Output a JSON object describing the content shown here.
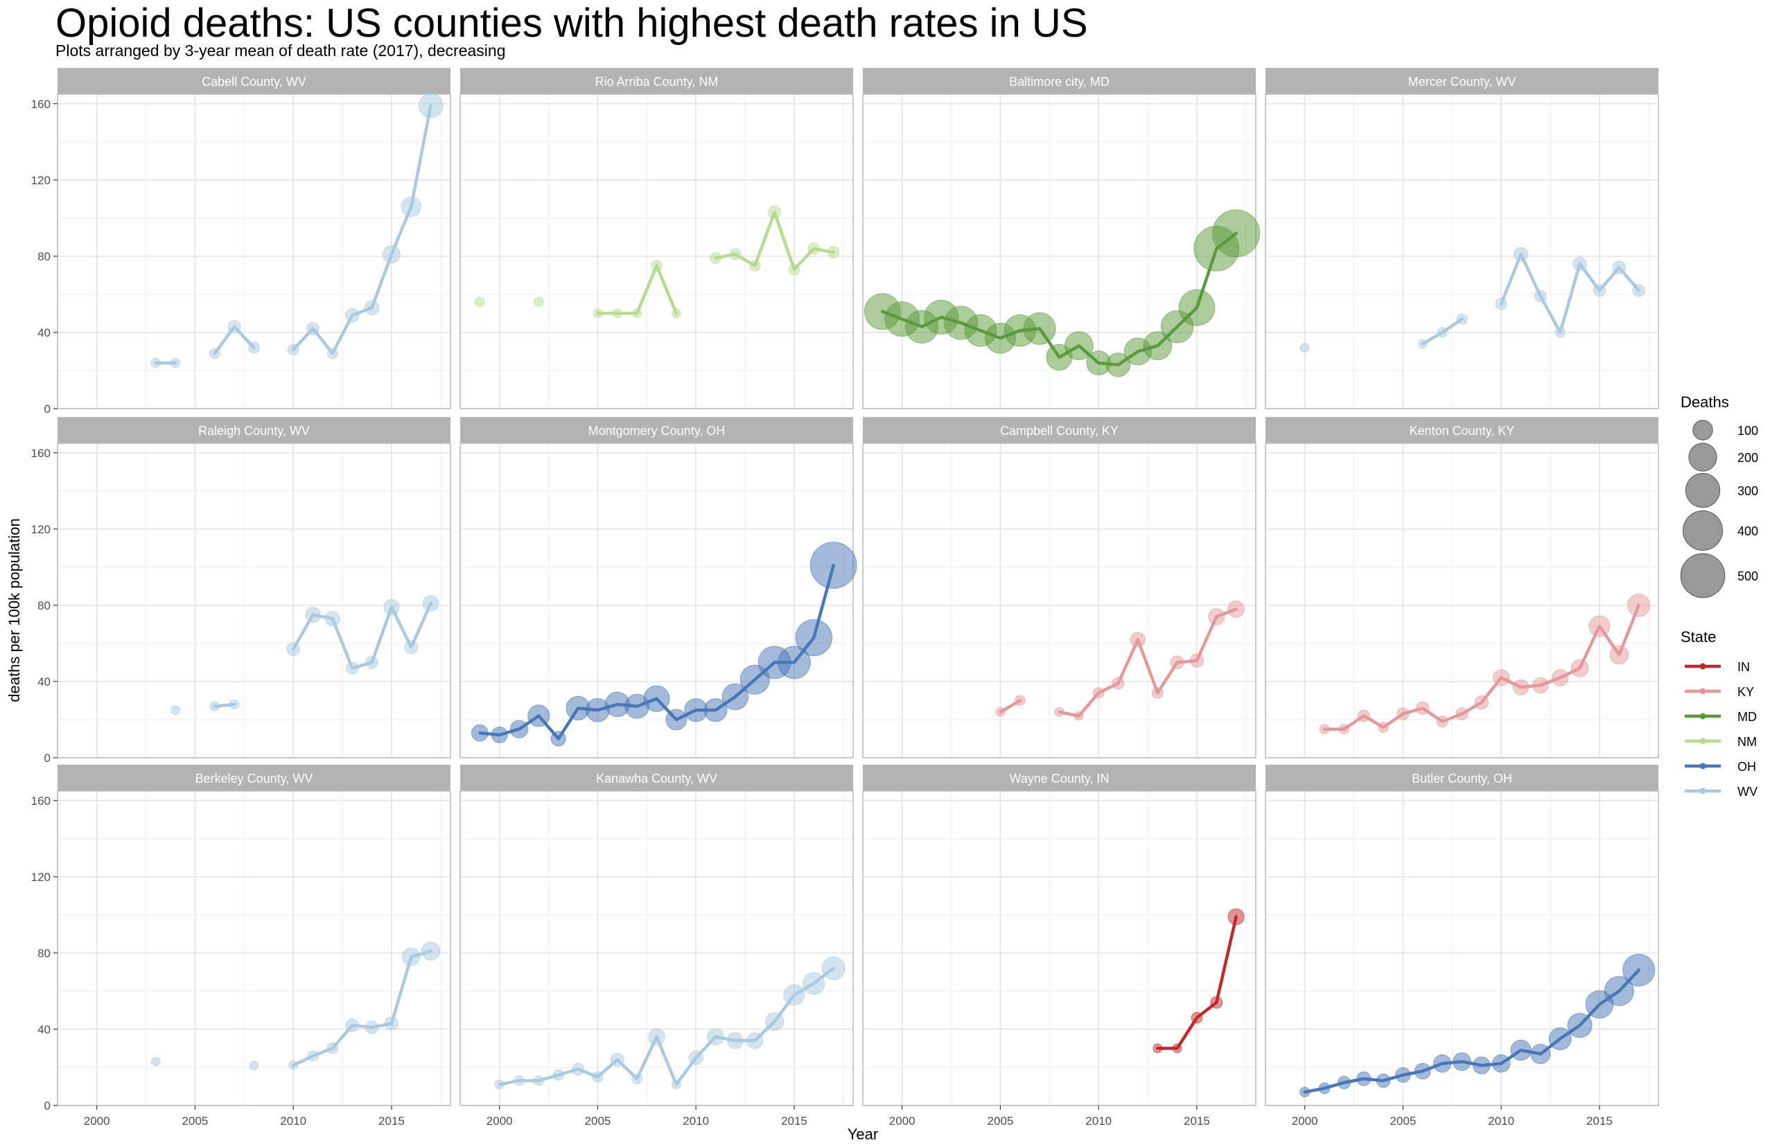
{
  "title": "Opioid deaths: US counties with highest death rates in US",
  "subtitle": "Plots arranged by 3-year mean of death rate (2017), decreasing",
  "chart_data": {
    "type": "line",
    "xlabel": "Year",
    "ylabel": "deaths per 100k population",
    "xlim": [
      1998,
      2018
    ],
    "ylim": [
      0,
      165
    ],
    "x_ticks": [
      2000,
      2005,
      2010,
      2015
    ],
    "y_ticks": [
      0,
      40,
      80,
      120,
      160
    ],
    "x_tick_labels": [
      "2000",
      "2005",
      "2010",
      "2015"
    ],
    "y_tick_labels": [
      "0",
      "40",
      "80",
      "120",
      "160"
    ],
    "grid": true,
    "legend_position": "right",
    "size_legend": {
      "title": "Deaths",
      "breaks": [
        100,
        200,
        300,
        400,
        500
      ],
      "labels": [
        "100",
        "200",
        "300",
        "400",
        "500"
      ]
    },
    "color_legend": {
      "title": "State",
      "entries": [
        {
          "label": "IN",
          "color": "#C1272D"
        },
        {
          "label": "KY",
          "color": "#E5989C"
        },
        {
          "label": "MD",
          "color": "#5A9A3A"
        },
        {
          "label": "NM",
          "color": "#B5DB8E"
        },
        {
          "label": "OH",
          "color": "#4876B6"
        },
        {
          "label": "WV",
          "color": "#A9C9E0"
        }
      ]
    },
    "panels": [
      {
        "name": "Cabell County, WV",
        "state": "WV",
        "points": [
          {
            "x": 2003,
            "y": 24,
            "d": 23
          },
          {
            "x": 2004,
            "y": 24,
            "d": 23
          },
          {
            "x": 2006,
            "y": 29,
            "d": 28
          },
          {
            "x": 2007,
            "y": 43,
            "d": 41
          },
          {
            "x": 2008,
            "y": 32,
            "d": 31
          },
          {
            "x": 2010,
            "y": 31,
            "d": 30
          },
          {
            "x": 2011,
            "y": 42,
            "d": 40
          },
          {
            "x": 2012,
            "y": 29,
            "d": 28
          },
          {
            "x": 2013,
            "y": 49,
            "d": 47
          },
          {
            "x": 2014,
            "y": 53,
            "d": 51
          },
          {
            "x": 2015,
            "y": 81,
            "d": 77
          },
          {
            "x": 2016,
            "y": 106,
            "d": 100
          },
          {
            "x": 2017,
            "y": 159,
            "d": 150
          }
        ]
      },
      {
        "name": "Rio Arriba County, NM",
        "state": "NM",
        "points": [
          {
            "x": 1999,
            "y": 56,
            "d": 23
          },
          {
            "x": 2002,
            "y": 56,
            "d": 23
          },
          {
            "x": 2005,
            "y": 50,
            "d": 20
          },
          {
            "x": 2006,
            "y": 50,
            "d": 20
          },
          {
            "x": 2007,
            "y": 50,
            "d": 20
          },
          {
            "x": 2008,
            "y": 75,
            "d": 30
          },
          {
            "x": 2009,
            "y": 50,
            "d": 20
          },
          {
            "x": 2011,
            "y": 79,
            "d": 32
          },
          {
            "x": 2012,
            "y": 81,
            "d": 33
          },
          {
            "x": 2013,
            "y": 75,
            "d": 30
          },
          {
            "x": 2014,
            "y": 103,
            "d": 41
          },
          {
            "x": 2015,
            "y": 73,
            "d": 29
          },
          {
            "x": 2016,
            "y": 84,
            "d": 34
          },
          {
            "x": 2017,
            "y": 82,
            "d": 33
          }
        ]
      },
      {
        "name": "Baltimore city, MD",
        "state": "MD",
        "points": [
          {
            "x": 1999,
            "y": 51,
            "d": 330
          },
          {
            "x": 2000,
            "y": 47,
            "d": 305
          },
          {
            "x": 2001,
            "y": 43,
            "d": 275
          },
          {
            "x": 2002,
            "y": 48,
            "d": 300
          },
          {
            "x": 2003,
            "y": 45,
            "d": 285
          },
          {
            "x": 2004,
            "y": 41,
            "d": 258
          },
          {
            "x": 2005,
            "y": 37,
            "d": 235
          },
          {
            "x": 2006,
            "y": 41,
            "d": 255
          },
          {
            "x": 2007,
            "y": 42,
            "d": 260
          },
          {
            "x": 2008,
            "y": 27,
            "d": 170
          },
          {
            "x": 2009,
            "y": 33,
            "d": 205
          },
          {
            "x": 2010,
            "y": 24,
            "d": 150
          },
          {
            "x": 2011,
            "y": 23,
            "d": 145
          },
          {
            "x": 2012,
            "y": 30,
            "d": 190
          },
          {
            "x": 2013,
            "y": 33,
            "d": 205
          },
          {
            "x": 2014,
            "y": 43,
            "d": 265
          },
          {
            "x": 2015,
            "y": 53,
            "d": 330
          },
          {
            "x": 2016,
            "y": 84,
            "d": 520
          },
          {
            "x": 2017,
            "y": 92,
            "d": 570
          }
        ]
      },
      {
        "name": "Mercer County, WV",
        "state": "WV",
        "points": [
          {
            "x": 2000,
            "y": 32,
            "d": 20
          },
          {
            "x": 2006,
            "y": 34,
            "d": 21
          },
          {
            "x": 2007,
            "y": 40,
            "d": 25
          },
          {
            "x": 2008,
            "y": 47,
            "d": 29
          },
          {
            "x": 2010,
            "y": 55,
            "d": 34
          },
          {
            "x": 2011,
            "y": 81,
            "d": 50
          },
          {
            "x": 2012,
            "y": 59,
            "d": 36
          },
          {
            "x": 2013,
            "y": 40,
            "d": 25
          },
          {
            "x": 2014,
            "y": 76,
            "d": 47
          },
          {
            "x": 2015,
            "y": 62,
            "d": 38
          },
          {
            "x": 2016,
            "y": 74,
            "d": 45
          },
          {
            "x": 2017,
            "y": 62,
            "d": 38
          }
        ]
      },
      {
        "name": "Raleigh County, WV",
        "state": "WV",
        "points": [
          {
            "x": 2004,
            "y": 25,
            "d": 20
          },
          {
            "x": 2006,
            "y": 27,
            "d": 21
          },
          {
            "x": 2007,
            "y": 28,
            "d": 22
          },
          {
            "x": 2010,
            "y": 57,
            "d": 45
          },
          {
            "x": 2011,
            "y": 75,
            "d": 59
          },
          {
            "x": 2012,
            "y": 73,
            "d": 57
          },
          {
            "x": 2013,
            "y": 47,
            "d": 37
          },
          {
            "x": 2014,
            "y": 50,
            "d": 39
          },
          {
            "x": 2015,
            "y": 79,
            "d": 62
          },
          {
            "x": 2016,
            "y": 58,
            "d": 45
          },
          {
            "x": 2017,
            "y": 81,
            "d": 63
          }
        ]
      },
      {
        "name": "Montgomery County, OH",
        "state": "OH",
        "points": [
          {
            "x": 1999,
            "y": 13,
            "d": 70
          },
          {
            "x": 2000,
            "y": 12,
            "d": 65
          },
          {
            "x": 2001,
            "y": 15,
            "d": 80
          },
          {
            "x": 2002,
            "y": 22,
            "d": 120
          },
          {
            "x": 2003,
            "y": 10,
            "d": 55
          },
          {
            "x": 2004,
            "y": 26,
            "d": 145
          },
          {
            "x": 2005,
            "y": 25,
            "d": 140
          },
          {
            "x": 2006,
            "y": 28,
            "d": 155
          },
          {
            "x": 2007,
            "y": 27,
            "d": 150
          },
          {
            "x": 2008,
            "y": 31,
            "d": 170
          },
          {
            "x": 2009,
            "y": 20,
            "d": 110
          },
          {
            "x": 2010,
            "y": 25,
            "d": 135
          },
          {
            "x": 2011,
            "y": 25,
            "d": 135
          },
          {
            "x": 2012,
            "y": 32,
            "d": 175
          },
          {
            "x": 2013,
            "y": 41,
            "d": 220
          },
          {
            "x": 2014,
            "y": 50,
            "d": 270
          },
          {
            "x": 2015,
            "y": 50,
            "d": 270
          },
          {
            "x": 2016,
            "y": 63,
            "d": 340
          },
          {
            "x": 2017,
            "y": 101,
            "d": 550
          }
        ]
      },
      {
        "name": "Campbell County, KY",
        "state": "KY",
        "points": [
          {
            "x": 2005,
            "y": 24,
            "d": 21
          },
          {
            "x": 2006,
            "y": 30,
            "d": 27
          },
          {
            "x": 2008,
            "y": 24,
            "d": 21
          },
          {
            "x": 2009,
            "y": 22,
            "d": 20
          },
          {
            "x": 2010,
            "y": 34,
            "d": 31
          },
          {
            "x": 2011,
            "y": 39,
            "d": 35
          },
          {
            "x": 2012,
            "y": 62,
            "d": 56
          },
          {
            "x": 2013,
            "y": 34,
            "d": 31
          },
          {
            "x": 2014,
            "y": 50,
            "d": 45
          },
          {
            "x": 2015,
            "y": 51,
            "d": 46
          },
          {
            "x": 2016,
            "y": 74,
            "d": 67
          },
          {
            "x": 2017,
            "y": 78,
            "d": 70
          }
        ]
      },
      {
        "name": "Kenton County, KY",
        "state": "KY",
        "points": [
          {
            "x": 2001,
            "y": 15,
            "d": 24
          },
          {
            "x": 2002,
            "y": 15,
            "d": 24
          },
          {
            "x": 2003,
            "y": 22,
            "d": 35
          },
          {
            "x": 2004,
            "y": 16,
            "d": 26
          },
          {
            "x": 2005,
            "y": 23,
            "d": 37
          },
          {
            "x": 2006,
            "y": 26,
            "d": 42
          },
          {
            "x": 2007,
            "y": 19,
            "d": 31
          },
          {
            "x": 2008,
            "y": 23,
            "d": 37
          },
          {
            "x": 2009,
            "y": 29,
            "d": 47
          },
          {
            "x": 2010,
            "y": 42,
            "d": 68
          },
          {
            "x": 2011,
            "y": 37,
            "d": 60
          },
          {
            "x": 2012,
            "y": 38,
            "d": 62
          },
          {
            "x": 2013,
            "y": 42,
            "d": 69
          },
          {
            "x": 2014,
            "y": 47,
            "d": 77
          },
          {
            "x": 2015,
            "y": 69,
            "d": 113
          },
          {
            "x": 2016,
            "y": 54,
            "d": 89
          },
          {
            "x": 2017,
            "y": 80,
            "d": 132
          }
        ]
      },
      {
        "name": "Berkeley County, WV",
        "state": "WV",
        "points": [
          {
            "x": 2003,
            "y": 23,
            "d": 20
          },
          {
            "x": 2008,
            "y": 21,
            "d": 20
          },
          {
            "x": 2010,
            "y": 21,
            "d": 21
          },
          {
            "x": 2011,
            "y": 26,
            "d": 27
          },
          {
            "x": 2012,
            "y": 30,
            "d": 31
          },
          {
            "x": 2013,
            "y": 42,
            "d": 44
          },
          {
            "x": 2014,
            "y": 41,
            "d": 43
          },
          {
            "x": 2015,
            "y": 43,
            "d": 45
          },
          {
            "x": 2016,
            "y": 78,
            "d": 82
          },
          {
            "x": 2017,
            "y": 81,
            "d": 86
          }
        ]
      },
      {
        "name": "Kanawha County, WV",
        "state": "WV",
        "points": [
          {
            "x": 2000,
            "y": 11,
            "d": 21
          },
          {
            "x": 2001,
            "y": 13,
            "d": 25
          },
          {
            "x": 2002,
            "y": 13,
            "d": 25
          },
          {
            "x": 2003,
            "y": 16,
            "d": 30
          },
          {
            "x": 2004,
            "y": 19,
            "d": 37
          },
          {
            "x": 2005,
            "y": 15,
            "d": 29
          },
          {
            "x": 2006,
            "y": 24,
            "d": 46
          },
          {
            "x": 2007,
            "y": 14,
            "d": 27
          },
          {
            "x": 2008,
            "y": 36,
            "d": 70
          },
          {
            "x": 2009,
            "y": 11,
            "d": 21
          },
          {
            "x": 2010,
            "y": 25,
            "d": 48
          },
          {
            "x": 2011,
            "y": 36,
            "d": 70
          },
          {
            "x": 2012,
            "y": 34,
            "d": 66
          },
          {
            "x": 2013,
            "y": 34,
            "d": 66
          },
          {
            "x": 2014,
            "y": 44,
            "d": 85
          },
          {
            "x": 2015,
            "y": 58,
            "d": 110
          },
          {
            "x": 2016,
            "y": 64,
            "d": 121
          },
          {
            "x": 2017,
            "y": 72,
            "d": 136
          }
        ]
      },
      {
        "name": "Wayne County, IN",
        "state": "IN",
        "points": [
          {
            "x": 2013,
            "y": 30,
            "d": 20
          },
          {
            "x": 2014,
            "y": 30,
            "d": 20
          },
          {
            "x": 2015,
            "y": 46,
            "d": 31
          },
          {
            "x": 2016,
            "y": 54,
            "d": 36
          },
          {
            "x": 2017,
            "y": 99,
            "d": 66
          }
        ]
      },
      {
        "name": "Butler County, OH",
        "state": "OH",
        "points": [
          {
            "x": 2000,
            "y": 7,
            "d": 24
          },
          {
            "x": 2001,
            "y": 9,
            "d": 31
          },
          {
            "x": 2002,
            "y": 12,
            "d": 41
          },
          {
            "x": 2003,
            "y": 14,
            "d": 49
          },
          {
            "x": 2004,
            "y": 13,
            "d": 46
          },
          {
            "x": 2005,
            "y": 16,
            "d": 56
          },
          {
            "x": 2006,
            "y": 18,
            "d": 64
          },
          {
            "x": 2007,
            "y": 22,
            "d": 78
          },
          {
            "x": 2008,
            "y": 23,
            "d": 82
          },
          {
            "x": 2009,
            "y": 21,
            "d": 75
          },
          {
            "x": 2010,
            "y": 22,
            "d": 80
          },
          {
            "x": 2011,
            "y": 29,
            "d": 105
          },
          {
            "x": 2012,
            "y": 27,
            "d": 98
          },
          {
            "x": 2013,
            "y": 35,
            "d": 127
          },
          {
            "x": 2014,
            "y": 42,
            "d": 153
          },
          {
            "x": 2015,
            "y": 53,
            "d": 195
          },
          {
            "x": 2016,
            "y": 60,
            "d": 220
          },
          {
            "x": 2017,
            "y": 71,
            "d": 262
          }
        ]
      }
    ]
  }
}
